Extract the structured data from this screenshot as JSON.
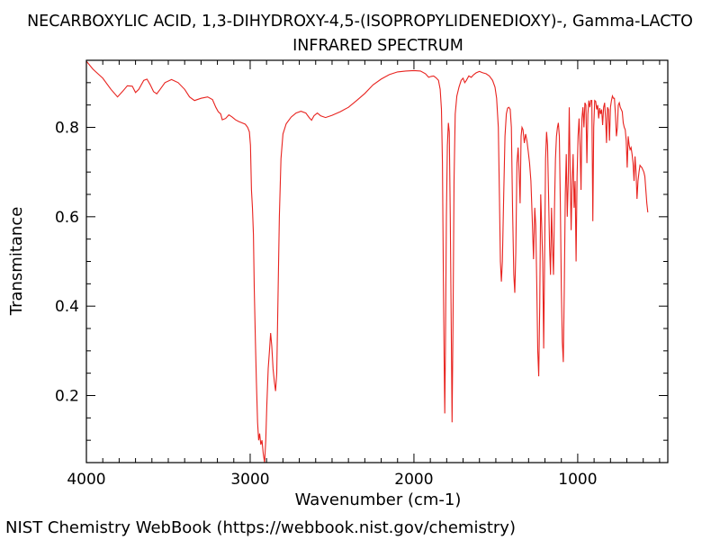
{
  "footer": "NIST Chemistry WebBook (https://webbook.nist.gov/chemistry)",
  "chart_data": {
    "type": "line",
    "title": "NECARBOXYLIC ACID, 1,3-DIHYDROXY-4,5-(ISOPROPYLIDENEDIOXY)-, Gamma-LACTO",
    "subtitle": "INFRARED SPECTRUM",
    "xlabel": "Wavenumber (cm-1)",
    "ylabel": "Transmitance",
    "xlim": [
      4000,
      450
    ],
    "ylim": [
      0.05,
      0.95
    ],
    "x_reversed": true,
    "grid": false,
    "line_color": "#e8231f",
    "x_ticks": [
      {
        "value": 4000,
        "label": "4000"
      },
      {
        "value": 3000,
        "label": "3000"
      },
      {
        "value": 2000,
        "label": "2000"
      },
      {
        "value": 1000,
        "label": "1000"
      }
    ],
    "y_ticks": [
      {
        "value": 0.2,
        "label": "0.2"
      },
      {
        "value": 0.4,
        "label": "0.4"
      },
      {
        "value": 0.6,
        "label": "0.6"
      },
      {
        "value": 0.8,
        "label": "0.8"
      }
    ],
    "series": [
      {
        "points": [
          [
            4000,
            0.948
          ],
          [
            3960,
            0.93
          ],
          [
            3900,
            0.91
          ],
          [
            3850,
            0.885
          ],
          [
            3810,
            0.868
          ],
          [
            3780,
            0.88
          ],
          [
            3750,
            0.893
          ],
          [
            3720,
            0.892
          ],
          [
            3700,
            0.878
          ],
          [
            3680,
            0.885
          ],
          [
            3650,
            0.905
          ],
          [
            3630,
            0.908
          ],
          [
            3610,
            0.895
          ],
          [
            3590,
            0.88
          ],
          [
            3570,
            0.875
          ],
          [
            3550,
            0.885
          ],
          [
            3520,
            0.9
          ],
          [
            3480,
            0.907
          ],
          [
            3440,
            0.9
          ],
          [
            3400,
            0.885
          ],
          [
            3370,
            0.868
          ],
          [
            3340,
            0.86
          ],
          [
            3300,
            0.865
          ],
          [
            3260,
            0.868
          ],
          [
            3230,
            0.862
          ],
          [
            3210,
            0.845
          ],
          [
            3195,
            0.835
          ],
          [
            3180,
            0.83
          ],
          [
            3170,
            0.817
          ],
          [
            3150,
            0.82
          ],
          [
            3130,
            0.828
          ],
          [
            3110,
            0.823
          ],
          [
            3090,
            0.817
          ],
          [
            3070,
            0.813
          ],
          [
            3050,
            0.81
          ],
          [
            3030,
            0.807
          ],
          [
            3015,
            0.8
          ],
          [
            3005,
            0.79
          ],
          [
            2998,
            0.76
          ],
          [
            2992,
            0.66
          ],
          [
            2986,
            0.62
          ],
          [
            2980,
            0.56
          ],
          [
            2975,
            0.44
          ],
          [
            2968,
            0.32
          ],
          [
            2962,
            0.23
          ],
          [
            2955,
            0.14
          ],
          [
            2948,
            0.1
          ],
          [
            2942,
            0.115
          ],
          [
            2935,
            0.09
          ],
          [
            2928,
            0.1
          ],
          [
            2920,
            0.07
          ],
          [
            2912,
            0.05
          ],
          [
            2905,
            0.1
          ],
          [
            2898,
            0.18
          ],
          [
            2890,
            0.26
          ],
          [
            2882,
            0.3
          ],
          [
            2875,
            0.34
          ],
          [
            2868,
            0.31
          ],
          [
            2860,
            0.26
          ],
          [
            2852,
            0.23
          ],
          [
            2845,
            0.21
          ],
          [
            2838,
            0.25
          ],
          [
            2830,
            0.42
          ],
          [
            2822,
            0.6
          ],
          [
            2812,
            0.73
          ],
          [
            2800,
            0.785
          ],
          [
            2780,
            0.808
          ],
          [
            2750,
            0.823
          ],
          [
            2720,
            0.832
          ],
          [
            2690,
            0.836
          ],
          [
            2660,
            0.832
          ],
          [
            2640,
            0.822
          ],
          [
            2625,
            0.816
          ],
          [
            2610,
            0.826
          ],
          [
            2590,
            0.832
          ],
          [
            2570,
            0.826
          ],
          [
            2540,
            0.822
          ],
          [
            2500,
            0.827
          ],
          [
            2450,
            0.835
          ],
          [
            2400,
            0.845
          ],
          [
            2350,
            0.86
          ],
          [
            2300,
            0.876
          ],
          [
            2250,
            0.895
          ],
          [
            2200,
            0.908
          ],
          [
            2150,
            0.918
          ],
          [
            2100,
            0.924
          ],
          [
            2050,
            0.926
          ],
          [
            2000,
            0.927
          ],
          [
            1960,
            0.926
          ],
          [
            1930,
            0.92
          ],
          [
            1910,
            0.912
          ],
          [
            1895,
            0.914
          ],
          [
            1880,
            0.915
          ],
          [
            1865,
            0.911
          ],
          [
            1850,
            0.905
          ],
          [
            1840,
            0.885
          ],
          [
            1832,
            0.84
          ],
          [
            1826,
            0.72
          ],
          [
            1820,
            0.45
          ],
          [
            1815,
            0.26
          ],
          [
            1812,
            0.16
          ],
          [
            1808,
            0.3
          ],
          [
            1802,
            0.6
          ],
          [
            1796,
            0.76
          ],
          [
            1790,
            0.81
          ],
          [
            1784,
            0.79
          ],
          [
            1778,
            0.6
          ],
          [
            1772,
            0.35
          ],
          [
            1767,
            0.14
          ],
          [
            1762,
            0.35
          ],
          [
            1755,
            0.68
          ],
          [
            1748,
            0.83
          ],
          [
            1738,
            0.87
          ],
          [
            1725,
            0.89
          ],
          [
            1712,
            0.905
          ],
          [
            1700,
            0.91
          ],
          [
            1690,
            0.9
          ],
          [
            1680,
            0.905
          ],
          [
            1665,
            0.915
          ],
          [
            1650,
            0.912
          ],
          [
            1635,
            0.918
          ],
          [
            1620,
            0.922
          ],
          [
            1600,
            0.925
          ],
          [
            1580,
            0.922
          ],
          [
            1560,
            0.92
          ],
          [
            1540,
            0.915
          ],
          [
            1520,
            0.905
          ],
          [
            1505,
            0.89
          ],
          [
            1495,
            0.865
          ],
          [
            1485,
            0.8
          ],
          [
            1478,
            0.65
          ],
          [
            1472,
            0.5
          ],
          [
            1466,
            0.455
          ],
          [
            1460,
            0.5
          ],
          [
            1452,
            0.65
          ],
          [
            1444,
            0.78
          ],
          [
            1436,
            0.83
          ],
          [
            1428,
            0.843
          ],
          [
            1420,
            0.845
          ],
          [
            1412,
            0.84
          ],
          [
            1405,
            0.8
          ],
          [
            1398,
            0.62
          ],
          [
            1390,
            0.47
          ],
          [
            1384,
            0.43
          ],
          [
            1378,
            0.52
          ],
          [
            1371,
            0.72
          ],
          [
            1364,
            0.755
          ],
          [
            1358,
            0.7
          ],
          [
            1352,
            0.63
          ],
          [
            1346,
            0.78
          ],
          [
            1340,
            0.8
          ],
          [
            1334,
            0.795
          ],
          [
            1326,
            0.765
          ],
          [
            1318,
            0.785
          ],
          [
            1310,
            0.77
          ],
          [
            1302,
            0.745
          ],
          [
            1294,
            0.72
          ],
          [
            1286,
            0.68
          ],
          [
            1278,
            0.6
          ],
          [
            1270,
            0.505
          ],
          [
            1262,
            0.62
          ],
          [
            1256,
            0.58
          ],
          [
            1250,
            0.45
          ],
          [
            1244,
            0.3
          ],
          [
            1238,
            0.243
          ],
          [
            1232,
            0.4
          ],
          [
            1226,
            0.65
          ],
          [
            1220,
            0.58
          ],
          [
            1214,
            0.5
          ],
          [
            1208,
            0.305
          ],
          [
            1202,
            0.52
          ],
          [
            1196,
            0.73
          ],
          [
            1190,
            0.79
          ],
          [
            1184,
            0.76
          ],
          [
            1178,
            0.65
          ],
          [
            1172,
            0.535
          ],
          [
            1166,
            0.47
          ],
          [
            1160,
            0.62
          ],
          [
            1154,
            0.535
          ],
          [
            1148,
            0.47
          ],
          [
            1142,
            0.62
          ],
          [
            1136,
            0.73
          ],
          [
            1130,
            0.78
          ],
          [
            1124,
            0.8
          ],
          [
            1118,
            0.81
          ],
          [
            1112,
            0.78
          ],
          [
            1106,
            0.63
          ],
          [
            1100,
            0.44
          ],
          [
            1094,
            0.32
          ],
          [
            1088,
            0.275
          ],
          [
            1082,
            0.44
          ],
          [
            1076,
            0.65
          ],
          [
            1070,
            0.74
          ],
          [
            1064,
            0.6
          ],
          [
            1058,
            0.68
          ],
          [
            1052,
            0.845
          ],
          [
            1046,
            0.7
          ],
          [
            1040,
            0.57
          ],
          [
            1034,
            0.68
          ],
          [
            1028,
            0.74
          ],
          [
            1022,
            0.62
          ],
          [
            1016,
            0.68
          ],
          [
            1010,
            0.5
          ],
          [
            1004,
            0.69
          ],
          [
            998,
            0.78
          ],
          [
            992,
            0.82
          ],
          [
            986,
            0.76
          ],
          [
            980,
            0.66
          ],
          [
            974,
            0.82
          ],
          [
            968,
            0.845
          ],
          [
            962,
            0.8
          ],
          [
            956,
            0.855
          ],
          [
            950,
            0.85
          ],
          [
            944,
            0.72
          ],
          [
            938,
            0.83
          ],
          [
            932,
            0.86
          ],
          [
            926,
            0.845
          ],
          [
            920,
            0.86
          ],
          [
            914,
            0.86
          ],
          [
            908,
            0.59
          ],
          [
            902,
            0.8
          ],
          [
            896,
            0.86
          ],
          [
            890,
            0.858
          ],
          [
            884,
            0.84
          ],
          [
            878,
            0.85
          ],
          [
            872,
            0.82
          ],
          [
            866,
            0.843
          ],
          [
            860,
            0.83
          ],
          [
            854,
            0.84
          ],
          [
            848,
            0.805
          ],
          [
            842,
            0.845
          ],
          [
            836,
            0.855
          ],
          [
            830,
            0.82
          ],
          [
            824,
            0.765
          ],
          [
            818,
            0.845
          ],
          [
            812,
            0.84
          ],
          [
            806,
            0.77
          ],
          [
            800,
            0.845
          ],
          [
            794,
            0.86
          ],
          [
            788,
            0.87
          ],
          [
            782,
            0.865
          ],
          [
            776,
            0.865
          ],
          [
            770,
            0.83
          ],
          [
            764,
            0.78
          ],
          [
            758,
            0.8
          ],
          [
            752,
            0.85
          ],
          [
            746,
            0.855
          ],
          [
            740,
            0.845
          ],
          [
            734,
            0.84
          ],
          [
            728,
            0.835
          ],
          [
            722,
            0.81
          ],
          [
            716,
            0.8
          ],
          [
            710,
            0.795
          ],
          [
            704,
            0.77
          ],
          [
            698,
            0.71
          ],
          [
            692,
            0.78
          ],
          [
            686,
            0.76
          ],
          [
            680,
            0.75
          ],
          [
            674,
            0.755
          ],
          [
            668,
            0.74
          ],
          [
            662,
            0.72
          ],
          [
            656,
            0.68
          ],
          [
            650,
            0.735
          ],
          [
            644,
            0.7
          ],
          [
            638,
            0.64
          ],
          [
            632,
            0.68
          ],
          [
            626,
            0.7
          ],
          [
            620,
            0.715
          ],
          [
            614,
            0.712
          ],
          [
            608,
            0.71
          ],
          [
            602,
            0.705
          ],
          [
            596,
            0.7
          ],
          [
            590,
            0.69
          ],
          [
            584,
            0.66
          ],
          [
            578,
            0.63
          ],
          [
            572,
            0.61
          ]
        ]
      }
    ]
  }
}
